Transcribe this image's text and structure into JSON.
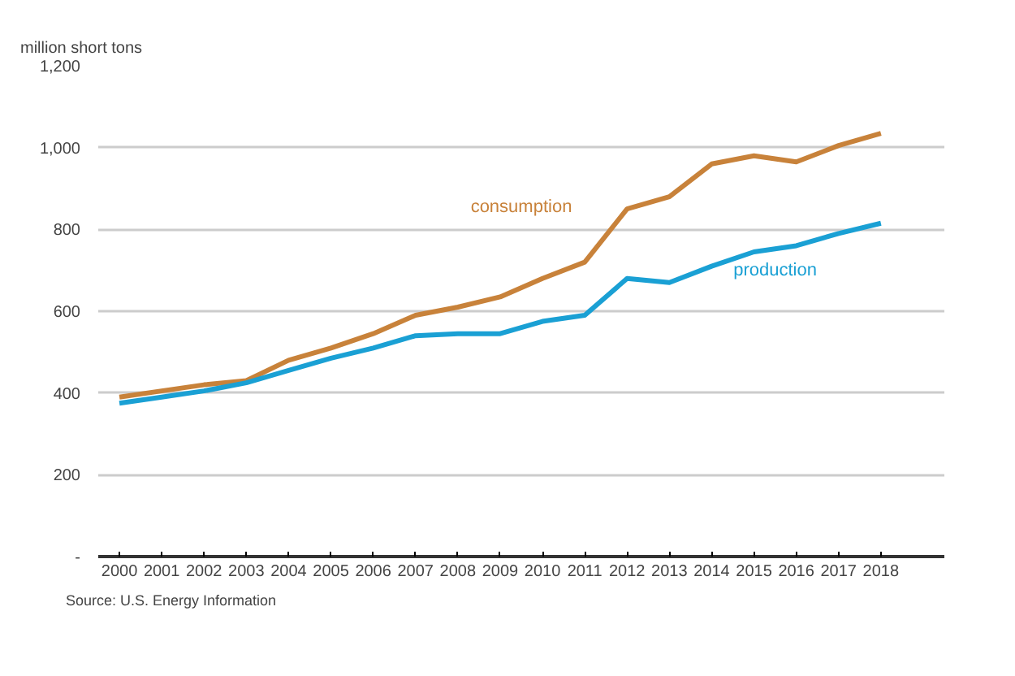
{
  "chart_data": {
    "type": "line",
    "ylabel": "million short tons",
    "categories": [
      "2000",
      "2001",
      "2002",
      "2003",
      "2004",
      "2005",
      "2006",
      "2007",
      "2008",
      "2009",
      "2010",
      "2011",
      "2012",
      "2013",
      "2014",
      "2015",
      "2016",
      "2017",
      "2018"
    ],
    "series": [
      {
        "name": "consumption",
        "color": "#c8823a",
        "values": [
          390,
          405,
          420,
          430,
          480,
          510,
          545,
          590,
          610,
          635,
          680,
          720,
          850,
          880,
          960,
          980,
          965,
          1005,
          1035
        ]
      },
      {
        "name": "production",
        "color": "#1aa0d4",
        "values": [
          375,
          390,
          405,
          425,
          455,
          485,
          510,
          540,
          545,
          545,
          575,
          590,
          680,
          670,
          710,
          745,
          760,
          790,
          815
        ]
      }
    ],
    "ylim": [
      0,
      1200
    ],
    "yticks": [
      {
        "value": 0,
        "label": "-"
      },
      {
        "value": 200,
        "label": "200"
      },
      {
        "value": 400,
        "label": "400"
      },
      {
        "value": 600,
        "label": "600"
      },
      {
        "value": 800,
        "label": "800"
      },
      {
        "value": 1000,
        "label": "1,000"
      },
      {
        "value": 1200,
        "label": "1,200"
      }
    ],
    "grid": "y",
    "line_style": "solid",
    "annotations": [
      "Source: U.S. Energy Information"
    ]
  }
}
